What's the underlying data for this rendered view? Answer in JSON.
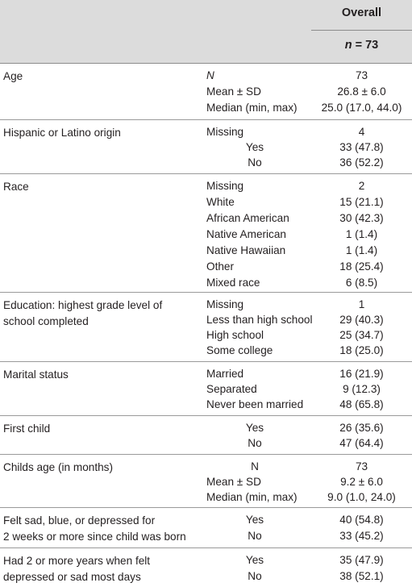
{
  "header": {
    "overall_label": "Overall",
    "n_label": "n",
    "n_value": "= 73"
  },
  "groups": [
    {
      "label": "Age",
      "rows": [
        {
          "level": "N",
          "value": "73"
        },
        {
          "level": "Mean ± SD",
          "value": "26.8 ± 6.0"
        },
        {
          "level": "Median (min, max)",
          "value": "25.0 (17.0, 44.0)"
        }
      ]
    },
    {
      "label": "Hispanic or Latino origin",
      "rows": [
        {
          "level": "Missing",
          "value": "4"
        },
        {
          "level": "Yes",
          "value": "33 (47.8)"
        },
        {
          "level": "No",
          "value": "36 (52.2)"
        }
      ]
    },
    {
      "label": "Race",
      "rows": [
        {
          "level": "Missing",
          "value": "2"
        },
        {
          "level": "White",
          "value": "15 (21.1)"
        },
        {
          "level": "African American",
          "value": "30 (42.3)"
        },
        {
          "level": "Native American",
          "value": "1 (1.4)"
        },
        {
          "level": "Native Hawaiian",
          "value": "1 (1.4)"
        },
        {
          "level": "Other",
          "value": "18 (25.4)"
        },
        {
          "level": "Mixed race",
          "value": "6 (8.5)"
        }
      ]
    },
    {
      "label_line1": "Education: highest grade level of",
      "label_line2": "school completed",
      "rows": [
        {
          "level": "Missing",
          "value": "1"
        },
        {
          "level": "Less than high school",
          "value": "29 (40.3)"
        },
        {
          "level": "High school",
          "value": "25 (34.7)"
        },
        {
          "level": "Some college",
          "value": "18 (25.0)"
        }
      ]
    },
    {
      "label": "Marital status",
      "rows": [
        {
          "level": "Married",
          "value": "16 (21.9)"
        },
        {
          "level": "Separated",
          "value": "9 (12.3)"
        },
        {
          "level": "Never been married",
          "value": "48 (65.8)"
        }
      ]
    },
    {
      "label": "First child",
      "rows": [
        {
          "level": "Yes",
          "value": "26 (35.6)"
        },
        {
          "level": "No",
          "value": "47 (64.4)"
        }
      ]
    },
    {
      "label": "Childs age (in months)",
      "rows": [
        {
          "level": "N",
          "value": "73"
        },
        {
          "level": "Mean ± SD",
          "value": "9.2 ± 6.0"
        },
        {
          "level": "Median (min, max)",
          "value": "9.0 (1.0, 24.0)"
        }
      ]
    },
    {
      "label_line1": "Felt sad, blue, or depressed for",
      "label_line2": "2 weeks or more since child was born",
      "rows": [
        {
          "level": "Yes",
          "value": "40 (54.8)"
        },
        {
          "level": "No",
          "value": "33 (45.2)"
        }
      ]
    },
    {
      "label_line1": "Had 2 or more years when felt",
      "label_line2": "depressed or sad most days",
      "rows": [
        {
          "level": "Yes",
          "value": "35 (47.9)"
        },
        {
          "level": "No",
          "value": "38 (52.1)"
        }
      ]
    }
  ]
}
